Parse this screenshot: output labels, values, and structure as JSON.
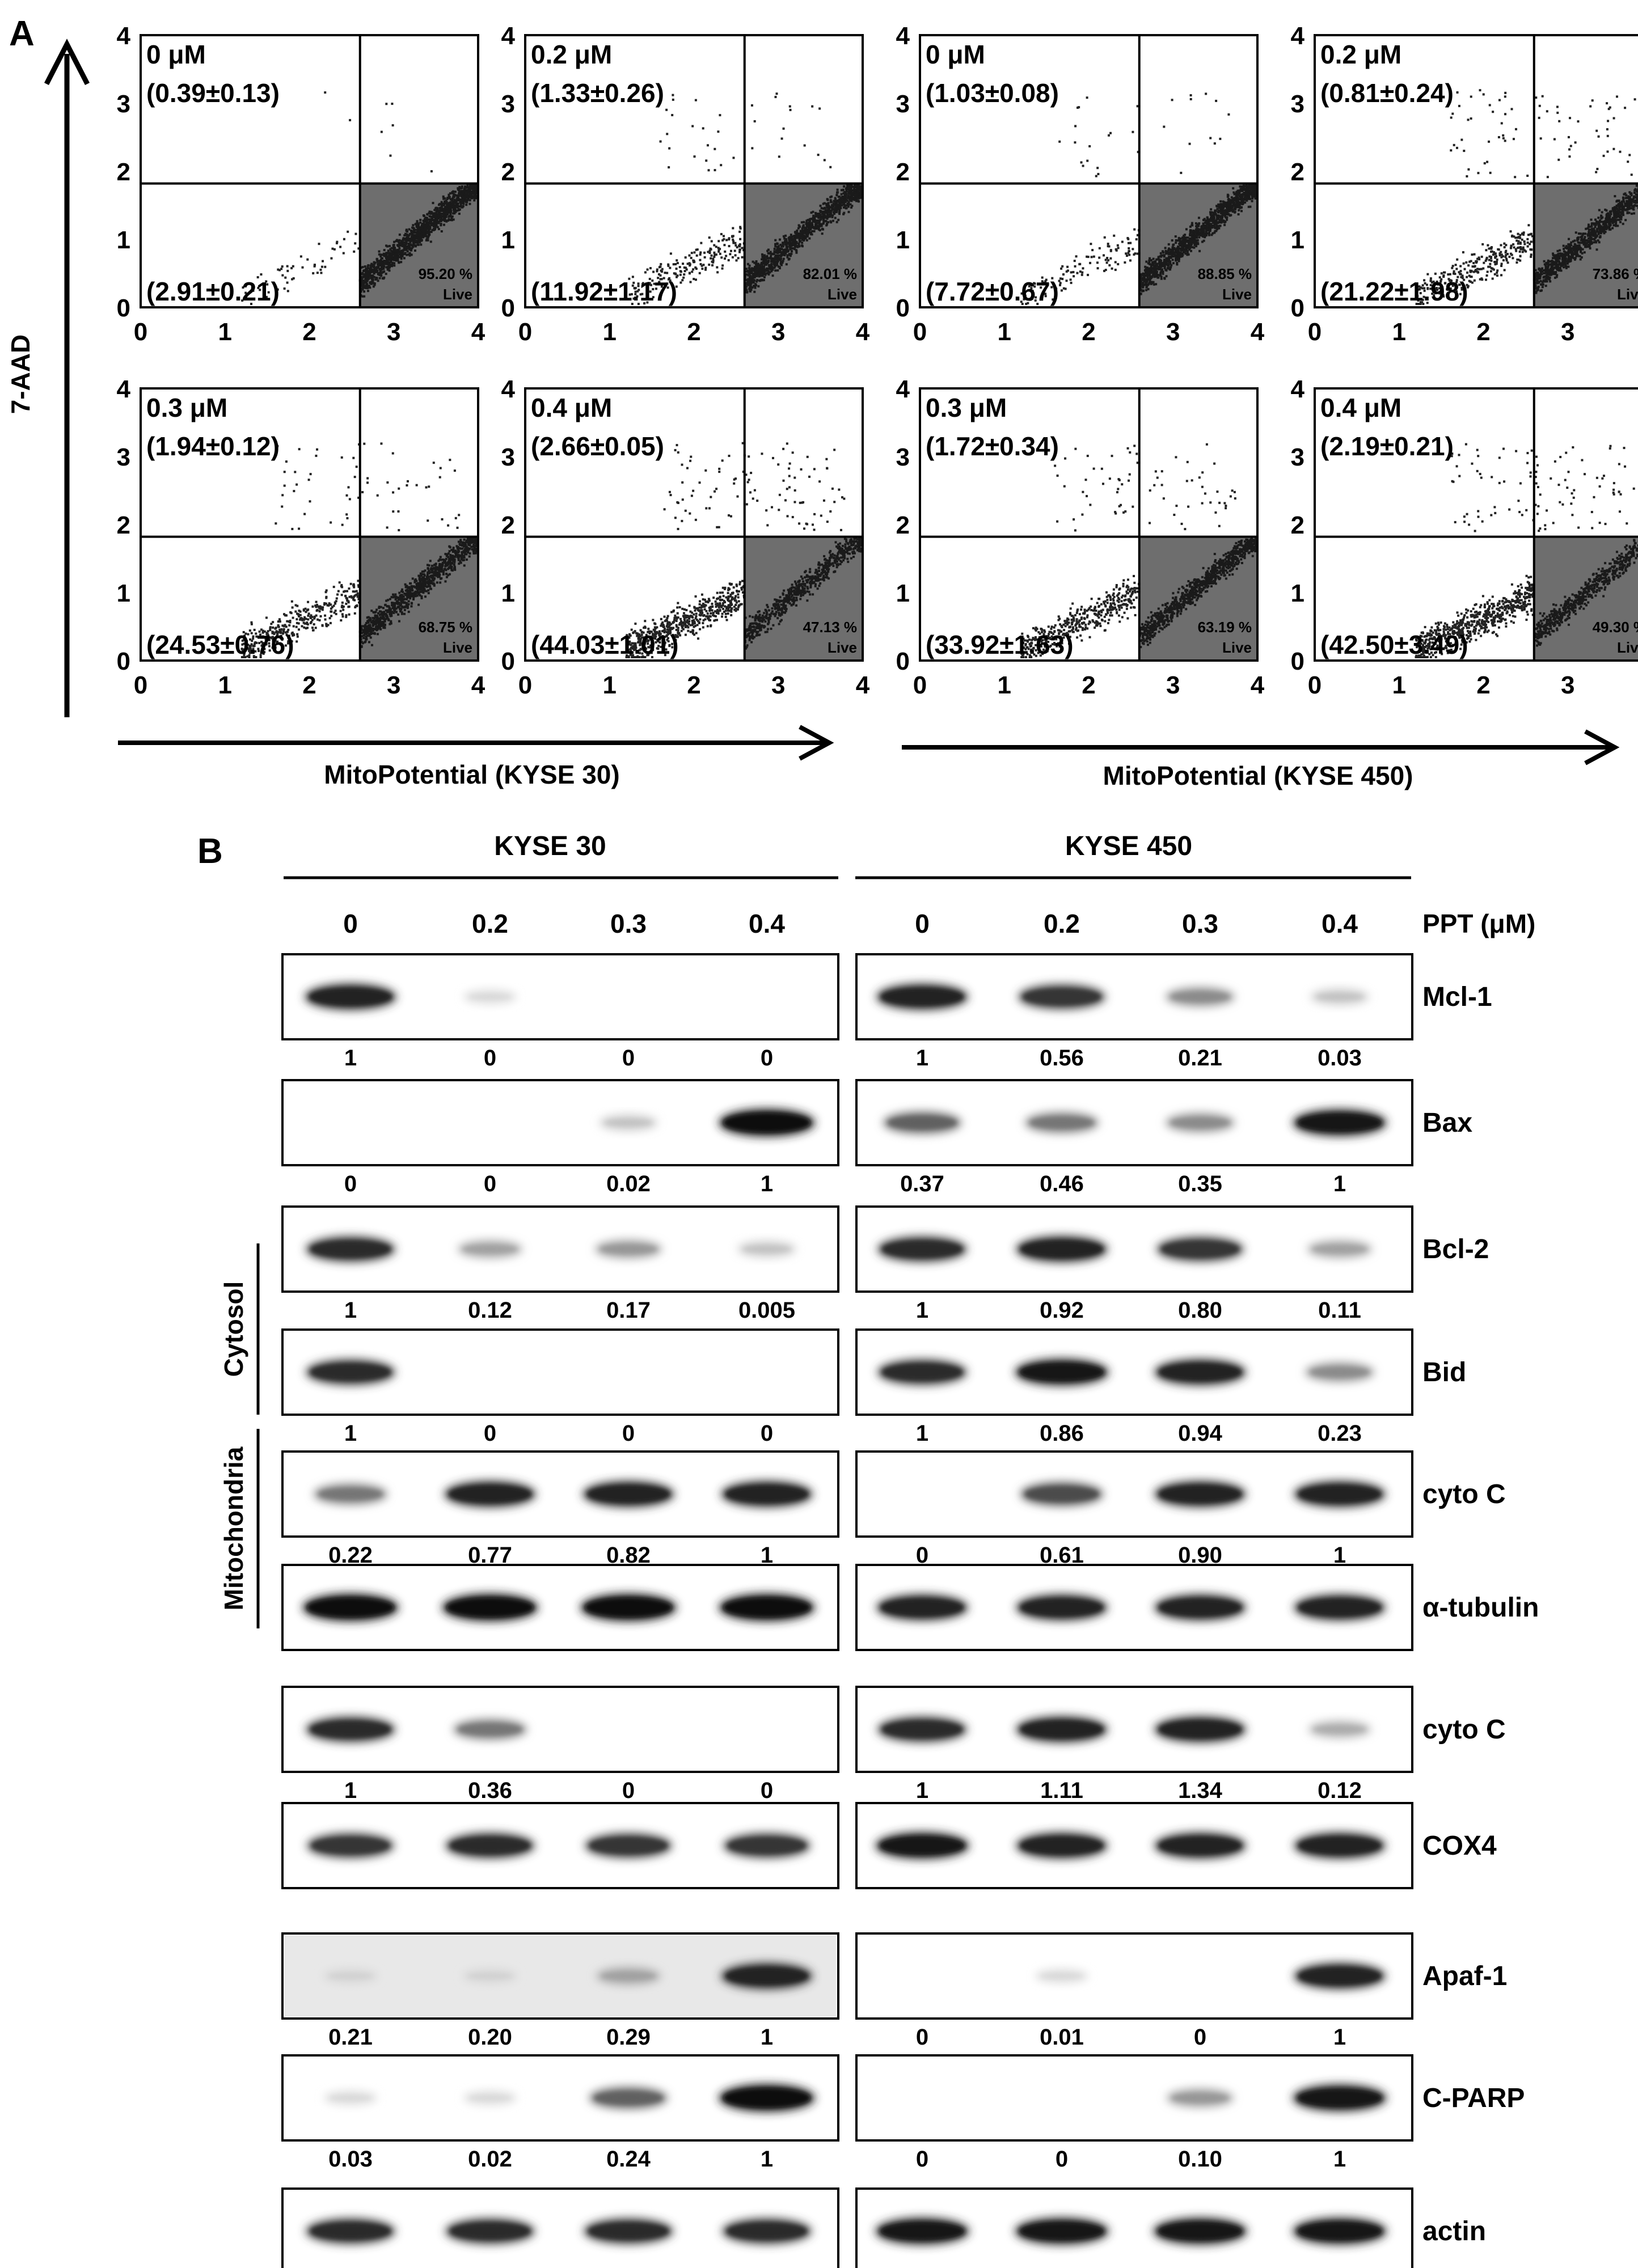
{
  "panel_a": {
    "label": "A",
    "y_axis_label": "7-AAD",
    "tick_labels": [
      "0",
      "1",
      "2",
      "3",
      "4"
    ],
    "gate_x": 2.6,
    "gate_y": 1.82,
    "live_label": "Live",
    "groups": [
      {
        "x_axis_label": "MitoPotential (KYSE 30)",
        "plots": [
          {
            "dose": "0 μM",
            "top_value": "(0.39±0.13)",
            "bottom_value": "(2.91±0.21)",
            "live_pct": "95.20 %"
          },
          {
            "dose": "0.2 μM",
            "top_value": "(1.33±0.26)",
            "bottom_value": "(11.92±1.17)",
            "live_pct": "82.01 %"
          },
          {
            "dose": "0.3 μM",
            "top_value": "(1.94±0.12)",
            "bottom_value": "(24.53±0.76)",
            "live_pct": "68.75 %"
          },
          {
            "dose": "0.4 μM",
            "top_value": "(2.66±0.05)",
            "bottom_value": "(44.03±1.01)",
            "live_pct": "47.13 %"
          }
        ]
      },
      {
        "x_axis_label": "MitoPotential (KYSE 450)",
        "plots": [
          {
            "dose": "0 μM",
            "top_value": "(1.03±0.08)",
            "bottom_value": "(7.72±0.67)",
            "live_pct": "88.85 %"
          },
          {
            "dose": "0.2 μM",
            "top_value": "(0.81±0.24)",
            "bottom_value": "(21.22±1.98)",
            "live_pct": "73.86 %"
          },
          {
            "dose": "0.3 μM",
            "top_value": "(1.72±0.34)",
            "bottom_value": "(33.92±1.63)",
            "live_pct": "63.19 %"
          },
          {
            "dose": "0.4 μM",
            "top_value": "(2.19±0.21)",
            "bottom_value": "(42.50±3.49)",
            "live_pct": "49.30 %"
          }
        ]
      }
    ]
  },
  "panel_b": {
    "label": "B",
    "cell_lines": [
      "KYSE 30",
      "KYSE 450"
    ],
    "doses": [
      "0",
      "0.2",
      "0.3",
      "0.4"
    ],
    "dose_unit_label": "PPT (μM)",
    "fraction_labels": {
      "cytosol": "Cytosol",
      "mitochondria": "Mitochondria"
    },
    "blots": [
      {
        "protein": "Mcl-1",
        "left": [
          "1",
          "0",
          "0",
          "0"
        ],
        "right": [
          "1",
          "0.56",
          "0.21",
          "0.03"
        ],
        "band_left": [
          0.9,
          0.05,
          0,
          0
        ],
        "band_right": [
          0.9,
          0.8,
          0.4,
          0.15
        ]
      },
      {
        "protein": "Bax",
        "left": [
          "0",
          "0",
          "0.02",
          "1"
        ],
        "right": [
          "0.37",
          "0.46",
          "0.35",
          "1"
        ],
        "band_left": [
          0,
          0,
          0.15,
          1
        ],
        "band_right": [
          0.6,
          0.5,
          0.4,
          0.95
        ]
      },
      {
        "protein": "Bcl-2",
        "left": [
          "1",
          "0.12",
          "0.17",
          "0.005"
        ],
        "right": [
          "1",
          "0.92",
          "0.80",
          "0.11"
        ],
        "band_left": [
          0.85,
          0.3,
          0.35,
          0.15
        ],
        "band_right": [
          0.85,
          0.9,
          0.8,
          0.3
        ]
      },
      {
        "protein": "Bid",
        "left": [
          "1",
          "0",
          "0",
          "0"
        ],
        "right": [
          "1",
          "0.86",
          "0.94",
          "0.23"
        ],
        "band_left": [
          0.85,
          0,
          0,
          0
        ],
        "band_right": [
          0.85,
          0.95,
          0.9,
          0.4
        ]
      },
      {
        "protein": "cyto C",
        "left": [
          "0.22",
          "0.77",
          "0.82",
          "1"
        ],
        "right": [
          "0",
          "0.61",
          "0.90",
          "1"
        ],
        "band_left": [
          0.5,
          0.9,
          0.9,
          0.9
        ],
        "band_right": [
          0,
          0.7,
          0.9,
          0.9
        ]
      },
      {
        "protein": "α-tubulin",
        "left": [],
        "right": [],
        "band_left": [
          1,
          1,
          1,
          1
        ],
        "band_right": [
          0.9,
          0.9,
          0.9,
          0.9
        ]
      },
      {
        "protein": "cyto C",
        "left": [
          "1",
          "0.36",
          "0",
          "0"
        ],
        "right": [
          "1",
          "1.11",
          "1.34",
          "0.12"
        ],
        "band_left": [
          0.85,
          0.5,
          0,
          0
        ],
        "band_right": [
          0.85,
          0.9,
          0.9,
          0.25
        ]
      },
      {
        "protein": "COX4",
        "left": [],
        "right": [],
        "band_left": [
          0.8,
          0.85,
          0.8,
          0.8
        ],
        "band_right": [
          0.95,
          0.9,
          0.9,
          0.9
        ]
      },
      {
        "protein": "Apaf-1",
        "left": [
          "0.21",
          "0.20",
          "0.29",
          "1"
        ],
        "right": [
          "0",
          "0.01",
          "0",
          "1"
        ],
        "band_left": [
          0.08,
          0.08,
          0.3,
          0.9
        ],
        "band_right": [
          0,
          0.05,
          0,
          0.9
        ]
      },
      {
        "protein": "C-PARP",
        "left": [
          "0.03",
          "0.02",
          "0.24",
          "1"
        ],
        "right": [
          "0",
          "0",
          "0.10",
          "1"
        ],
        "band_left": [
          0.05,
          0.05,
          0.6,
          1
        ],
        "band_right": [
          0,
          0,
          0.35,
          0.95
        ]
      },
      {
        "protein": "actin",
        "left": [],
        "right": [],
        "band_left": [
          0.85,
          0.85,
          0.85,
          0.85
        ],
        "band_right": [
          0.95,
          0.95,
          0.95,
          0.95
        ]
      }
    ]
  }
}
